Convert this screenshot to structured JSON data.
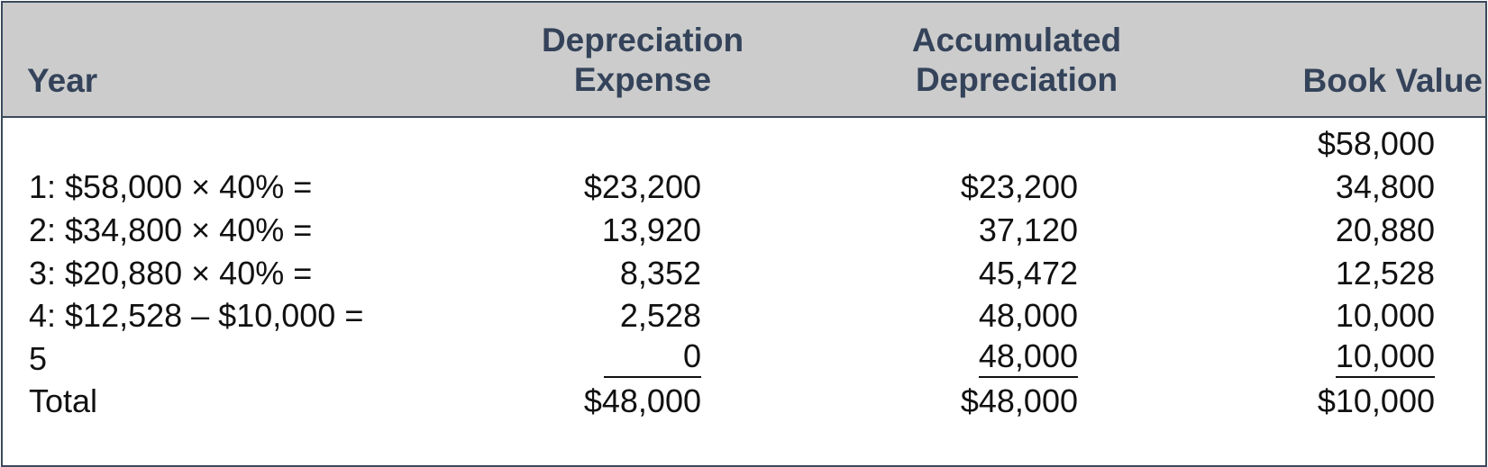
{
  "headers": {
    "year": "Year",
    "depreciation_expense": [
      "Depreciation",
      "Expense"
    ],
    "accumulated_depreciation": [
      "Accumulated",
      "Depreciation"
    ],
    "book_value": "Book Value"
  },
  "rows": [
    {
      "label": "",
      "expense": "",
      "accumulated": "",
      "book_value": "$58,000"
    },
    {
      "label": "1: $58,000 × 40% =",
      "expense": "$23,200",
      "accumulated": "$23,200",
      "book_value": "34,800"
    },
    {
      "label": "2: $34,800 × 40% =",
      "expense": "13,920",
      "accumulated": "37,120",
      "book_value": "20,880"
    },
    {
      "label": "3: $20,880 × 40% =",
      "expense": "8,352",
      "accumulated": "45,472",
      "book_value": "12,528"
    },
    {
      "label": "4: $12,528 – $10,000 =",
      "expense": "2,528",
      "accumulated": "48,000",
      "book_value": "10,000"
    },
    {
      "label": "5",
      "expense": "0",
      "accumulated": "48,000",
      "book_value": "10,000"
    },
    {
      "label": "Total",
      "expense": "$48,000",
      "accumulated": "$48,000",
      "book_value": "$10,000"
    }
  ]
}
